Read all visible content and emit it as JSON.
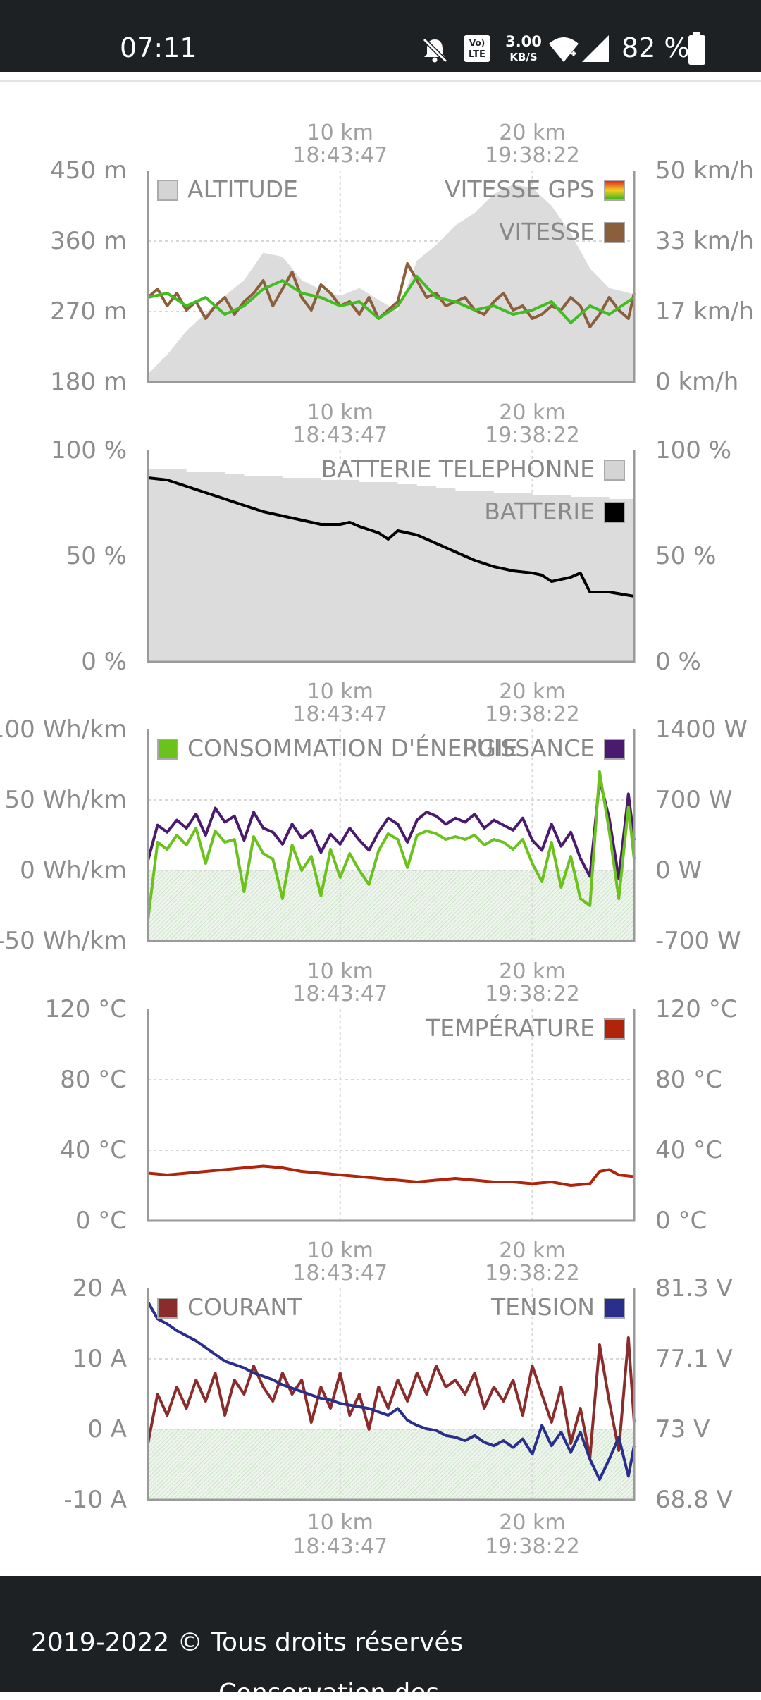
{
  "status_bar": {
    "time": "07:11",
    "network_type": "LTE",
    "network_prefix": "Vo)",
    "data_rate": "3.00",
    "data_rate_unit": "KB/S",
    "battery": "82 %",
    "icons": [
      "bell-off-icon",
      "volte-icon",
      "wifi-icon",
      "signal-icon",
      "battery-icon"
    ]
  },
  "x_axis": {
    "ticks": [
      {
        "distance": "10 km",
        "time": "18:43:47"
      },
      {
        "distance": "20 km",
        "time": "19:38:22"
      }
    ]
  },
  "chart_data": [
    {
      "type": "line",
      "name": "altitude-speed",
      "x_unit": "km",
      "x_range": [
        0,
        25.3
      ],
      "y_left": {
        "ticks": [
          "450 m",
          "360 m",
          "270 m",
          "180 m"
        ],
        "range": [
          180,
          450
        ],
        "unit": "m"
      },
      "y_right": {
        "ticks": [
          "50 km/h",
          "33 km/h",
          "17 km/h",
          "0 km/h"
        ],
        "range": [
          0,
          50
        ],
        "unit": "km/h"
      },
      "legend": [
        {
          "label": "ALTITUDE",
          "position": "top-left",
          "color": "#d4d4d4"
        },
        {
          "label": "VITESSE GPS",
          "position": "top-right",
          "color": "gradient-red-yellow-green"
        },
        {
          "label": "VITESSE",
          "position": "top-right",
          "color": "#8b5e3c"
        }
      ],
      "series": [
        {
          "name": "ALTITUDE",
          "axis": "left",
          "style": "area",
          "color": "#dcdcdc",
          "x": [
            0,
            1,
            2,
            3,
            4,
            5,
            6,
            7,
            8,
            9,
            10,
            11,
            12,
            13,
            14,
            15,
            16,
            17,
            18,
            19,
            20,
            21,
            22,
            23,
            24,
            25.3
          ],
          "values": [
            190,
            215,
            245,
            268,
            290,
            310,
            345,
            340,
            310,
            298,
            290,
            300,
            285,
            270,
            335,
            355,
            380,
            396,
            420,
            432,
            428,
            405,
            370,
            325,
            300,
            292
          ]
        },
        {
          "name": "VITESSE",
          "axis": "right",
          "style": "line",
          "color": "#8b5e3c",
          "x": [
            0,
            0.5,
            1,
            1.5,
            2,
            2.5,
            3,
            3.5,
            4,
            4.5,
            5,
            5.5,
            6,
            6.5,
            7,
            7.5,
            8,
            8.5,
            9,
            9.5,
            10,
            10.5,
            11,
            11.5,
            12,
            12.5,
            13,
            13.5,
            14,
            14.5,
            15,
            15.5,
            16,
            16.5,
            17,
            17.5,
            18,
            18.5,
            19,
            19.5,
            20,
            20.5,
            21,
            21.5,
            22,
            22.5,
            23,
            23.5,
            24,
            24.5,
            25,
            25.3
          ],
          "values": [
            20,
            22,
            18,
            21,
            17,
            19,
            15,
            18,
            20,
            16,
            19,
            21,
            24,
            18,
            22,
            26,
            20,
            17,
            23,
            21,
            18,
            19,
            16,
            20,
            15,
            17,
            19,
            28,
            24,
            20,
            21,
            18,
            19,
            20,
            17,
            16,
            19,
            21,
            17,
            18,
            15,
            16,
            18,
            17,
            20,
            18,
            13,
            16,
            20,
            17,
            15,
            21
          ]
        },
        {
          "name": "VITESSE GPS",
          "axis": "right",
          "style": "line",
          "color": "#44bb22",
          "x": [
            0,
            1,
            2,
            3,
            4,
            5,
            6,
            7,
            8,
            9,
            10,
            11,
            12,
            13,
            14,
            15,
            16,
            17,
            18,
            19,
            20,
            21,
            22,
            23,
            24,
            25.3
          ],
          "values": [
            20,
            21,
            18,
            20,
            16,
            18,
            22,
            24,
            21,
            20,
            18,
            19,
            15,
            18,
            25,
            20,
            19,
            17,
            18,
            16,
            17,
            19,
            14,
            18,
            16,
            20
          ]
        }
      ]
    },
    {
      "type": "line",
      "name": "battery",
      "x_unit": "km",
      "x_range": [
        0,
        25.3
      ],
      "y_left": {
        "ticks": [
          "100 %",
          "50 %",
          "0 %"
        ],
        "range": [
          0,
          100
        ],
        "unit": "%"
      },
      "y_right": {
        "ticks": [
          "100 %",
          "50 %",
          "0 %"
        ],
        "range": [
          0,
          100
        ],
        "unit": "%"
      },
      "legend": [
        {
          "label": "BATTERIE TELEPHONNE",
          "position": "top-right",
          "color": "#d4d4d4"
        },
        {
          "label": "BATTERIE",
          "position": "top-right",
          "color": "#000000"
        }
      ],
      "series": [
        {
          "name": "BATTERIE TELEPHONNE",
          "axis": "left",
          "style": "area-step",
          "color": "#dcdcdc",
          "x": [
            0,
            1,
            2,
            3,
            4,
            5,
            6,
            7,
            8,
            9,
            10,
            11,
            12,
            13,
            14,
            15,
            16,
            17,
            18,
            19,
            20,
            21,
            22,
            23,
            24,
            25.3
          ],
          "values": [
            91,
            91,
            90,
            90,
            89,
            88,
            88,
            87,
            87,
            86,
            86,
            85,
            85,
            84,
            83,
            82,
            81,
            81,
            80,
            80,
            79,
            79,
            78,
            78,
            77,
            77
          ]
        },
        {
          "name": "BATTERIE",
          "axis": "left",
          "style": "line",
          "color": "#000000",
          "x": [
            0,
            1,
            2,
            3,
            4,
            5,
            6,
            7,
            8,
            9,
            10,
            10.5,
            11,
            12,
            12.5,
            13,
            14,
            15,
            16,
            17,
            18,
            19,
            20,
            20.5,
            21,
            22,
            22.5,
            23,
            24,
            25.3
          ],
          "values": [
            87,
            86,
            83,
            80,
            77,
            74,
            71,
            69,
            67,
            65,
            65,
            66,
            64,
            61,
            58,
            62,
            60,
            56,
            52,
            48,
            45,
            43,
            42,
            41,
            38,
            40,
            42,
            33,
            33,
            31
          ]
        }
      ]
    },
    {
      "type": "line",
      "name": "energy-power",
      "x_unit": "km",
      "x_range": [
        0,
        25.3
      ],
      "y_left": {
        "ticks": [
          "100 Wh/km",
          "50 Wh/km",
          "0 Wh/km",
          "-50 Wh/km"
        ],
        "range": [
          -50,
          100
        ],
        "unit": "Wh/km"
      },
      "y_right": {
        "ticks": [
          "1400 W",
          "700 W",
          "0 W",
          "-700 W"
        ],
        "range": [
          -700,
          1400
        ],
        "unit": "W"
      },
      "legend": [
        {
          "label": "CONSOMMATION D'ÉNERGIE",
          "position": "top-left",
          "color": "#6cc21c"
        },
        {
          "label": "PUISSANCE",
          "position": "top-right",
          "color": "#4a1a6e"
        }
      ],
      "series": [
        {
          "name": "PUISSANCE",
          "axis": "right",
          "style": "line",
          "color": "#4a1a6e",
          "x": [
            0,
            0.5,
            1,
            1.5,
            2,
            2.5,
            3,
            3.5,
            4,
            4.5,
            5,
            5.5,
            6,
            6.5,
            7,
            7.5,
            8,
            8.5,
            9,
            9.5,
            10,
            10.5,
            11,
            11.5,
            12,
            12.5,
            13,
            13.5,
            14,
            14.5,
            15,
            15.5,
            16,
            16.5,
            17,
            17.5,
            18,
            18.5,
            19,
            19.5,
            20,
            20.5,
            21,
            21.5,
            22,
            22.5,
            23,
            23.5,
            24,
            24.5,
            25,
            25.3
          ],
          "values": [
            100,
            450,
            380,
            500,
            420,
            560,
            350,
            620,
            480,
            540,
            300,
            580,
            420,
            380,
            260,
            460,
            320,
            400,
            180,
            360,
            260,
            420,
            300,
            200,
            380,
            520,
            460,
            280,
            500,
            580,
            540,
            460,
            520,
            480,
            560,
            420,
            500,
            450,
            400,
            520,
            300,
            200,
            460,
            240,
            380,
            120,
            -60,
            900,
            520,
            -80,
            760,
            300
          ]
        },
        {
          "name": "CONSOMMATION D'ÉNERGIE",
          "axis": "left",
          "style": "line",
          "color": "#6cc21c",
          "x": [
            0,
            0.5,
            1,
            1.5,
            2,
            2.5,
            3,
            3.5,
            4,
            4.5,
            5,
            5.5,
            6,
            6.5,
            7,
            7.5,
            8,
            8.5,
            9,
            9.5,
            10,
            10.5,
            11,
            11.5,
            12,
            12.5,
            13,
            13.5,
            14,
            14.5,
            15,
            15.5,
            16,
            16.5,
            17,
            17.5,
            18,
            18.5,
            19,
            19.5,
            20,
            20.5,
            21,
            21.5,
            22,
            22.5,
            23,
            23.5,
            24,
            24.5,
            25,
            25.3
          ],
          "values": [
            -35,
            20,
            15,
            25,
            18,
            30,
            5,
            28,
            20,
            22,
            -15,
            24,
            12,
            8,
            -20,
            18,
            0,
            10,
            -18,
            15,
            -5,
            12,
            0,
            -10,
            14,
            26,
            22,
            2,
            25,
            28,
            26,
            22,
            24,
            22,
            25,
            18,
            22,
            20,
            15,
            22,
            5,
            -8,
            20,
            -12,
            10,
            -20,
            -25,
            70,
            28,
            -20,
            45,
            8
          ]
        }
      ]
    },
    {
      "type": "line",
      "name": "temperature",
      "x_unit": "km",
      "x_range": [
        0,
        25.3
      ],
      "y_left": {
        "ticks": [
          "120 °C",
          "80 °C",
          "40 °C",
          "0 °C"
        ],
        "range": [
          0,
          120
        ],
        "unit": "°C"
      },
      "y_right": {
        "ticks": [
          "120 °C",
          "80 °C",
          "40 °C",
          "0 °C"
        ],
        "range": [
          0,
          120
        ],
        "unit": "°C"
      },
      "legend": [
        {
          "label": "TEMPÉRATURE",
          "position": "top-right",
          "color": "#b0240c"
        }
      ],
      "series": [
        {
          "name": "TEMPÉRATURE",
          "axis": "left",
          "style": "line",
          "color": "#b0240c",
          "x": [
            0,
            1,
            2,
            3,
            4,
            5,
            6,
            7,
            8,
            9,
            10,
            11,
            12,
            13,
            14,
            15,
            16,
            17,
            18,
            19,
            20,
            21,
            22,
            23,
            23.5,
            24,
            24.5,
            25.3
          ],
          "values": [
            27,
            26,
            27,
            28,
            29,
            30,
            31,
            30,
            28,
            27,
            26,
            25,
            24,
            23,
            22,
            23,
            24,
            23,
            22,
            22,
            21,
            22,
            20,
            21,
            28,
            29,
            26,
            25
          ]
        }
      ]
    },
    {
      "type": "line",
      "name": "current-voltage",
      "x_unit": "km",
      "x_range": [
        0,
        25.3
      ],
      "y_left": {
        "ticks": [
          "20 A",
          "10 A",
          "0 A",
          "-10 A"
        ],
        "range": [
          -10,
          20
        ],
        "unit": "A"
      },
      "y_right": {
        "ticks": [
          "81.3 V",
          "77.1 V",
          "73 V",
          "68.8 V"
        ],
        "range": [
          68.8,
          81.3
        ],
        "unit": "V"
      },
      "legend": [
        {
          "label": "COURANT",
          "position": "top-left",
          "color": "#8b2c2c"
        },
        {
          "label": "TENSION",
          "position": "top-right",
          "color": "#2b2f8c"
        }
      ],
      "series": [
        {
          "name": "COURANT",
          "axis": "left",
          "style": "line",
          "color": "#8b2c2c",
          "x": [
            0,
            0.5,
            1,
            1.5,
            2,
            2.5,
            3,
            3.5,
            4,
            4.5,
            5,
            5.5,
            6,
            6.5,
            7,
            7.5,
            8,
            8.5,
            9,
            9.5,
            10,
            10.5,
            11,
            11.5,
            12,
            12.5,
            13,
            13.5,
            14,
            14.5,
            15,
            15.5,
            16,
            16.5,
            17,
            17.5,
            18,
            18.5,
            19,
            19.5,
            20,
            20.5,
            21,
            21.5,
            22,
            22.5,
            23,
            23.5,
            24,
            24.5,
            25,
            25.3
          ],
          "values": [
            -2,
            5,
            2,
            6,
            3,
            7,
            4,
            8,
            2,
            7,
            5,
            9,
            6,
            4,
            8,
            5,
            7,
            1,
            6,
            3,
            8,
            2,
            5,
            0,
            6,
            3,
            7,
            4,
            8,
            5,
            9,
            6,
            7,
            5,
            8,
            3,
            6,
            4,
            7,
            2,
            9,
            5,
            1,
            6,
            -2,
            3,
            -4,
            12,
            4,
            -3,
            13,
            1
          ]
        },
        {
          "name": "TENSION",
          "axis": "right",
          "style": "line",
          "color": "#2b2f8c",
          "x": [
            0,
            0.5,
            1,
            1.5,
            2,
            2.5,
            3,
            3.5,
            4,
            4.5,
            5,
            5.5,
            6,
            6.5,
            7,
            7.5,
            8,
            8.5,
            9,
            9.5,
            10,
            10.5,
            11,
            11.5,
            12,
            12.5,
            13,
            13.5,
            14,
            14.5,
            15,
            15.5,
            16,
            16.5,
            17,
            17.5,
            18,
            18.5,
            19,
            19.5,
            20,
            20.5,
            21,
            21.5,
            22,
            22.5,
            23,
            23.5,
            24,
            24.5,
            25,
            25.3
          ],
          "values": [
            80.5,
            79.5,
            79.2,
            78.8,
            78.5,
            78.2,
            77.8,
            77.4,
            77,
            76.8,
            76.6,
            76.3,
            76.1,
            75.9,
            75.6,
            75.4,
            75.2,
            75,
            74.8,
            74.7,
            74.5,
            74.4,
            74.3,
            74.2,
            74,
            73.8,
            74.2,
            73.5,
            73.2,
            73,
            72.9,
            72.6,
            72.5,
            72.3,
            72.6,
            72.2,
            72,
            72.3,
            71.9,
            72.4,
            71.5,
            73.2,
            72,
            72.8,
            71.6,
            72.8,
            71.2,
            70,
            71.2,
            72.5,
            70.2,
            72
          ]
        }
      ]
    }
  ],
  "footer": {
    "copyright": "2019-2022 © Tous droits réservés",
    "second_line": "Conservation des"
  }
}
